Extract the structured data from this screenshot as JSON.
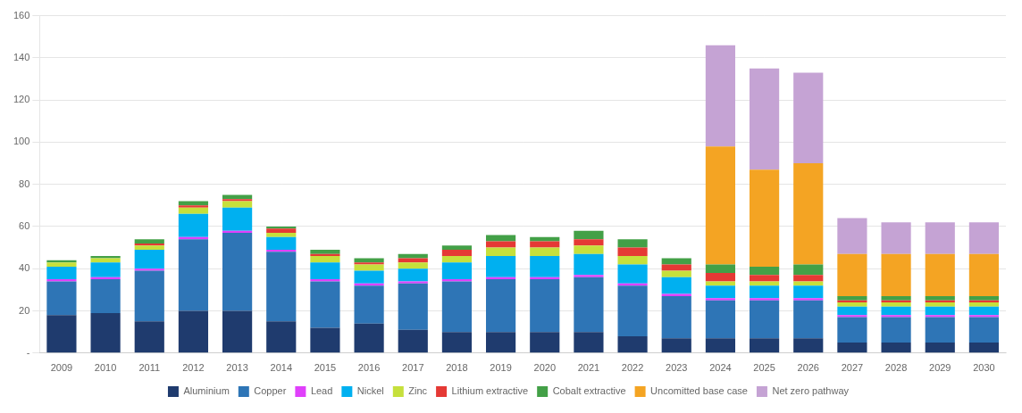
{
  "chart_data": {
    "type": "bar",
    "categories": [
      "2009",
      "2010",
      "2011",
      "2012",
      "2013",
      "2014",
      "2015",
      "2016",
      "2017",
      "2018",
      "2019",
      "2020",
      "2021",
      "2022",
      "2023",
      "2024",
      "2025",
      "2026",
      "2027",
      "2028",
      "2029",
      "2030"
    ],
    "series": [
      {
        "name": "Aluminium",
        "color": "#1f3b6e",
        "values": [
          18,
          19,
          15,
          20,
          20,
          15,
          12,
          14,
          11,
          10,
          10,
          10,
          10,
          8,
          7,
          7,
          7,
          7,
          5,
          5,
          5,
          5
        ]
      },
      {
        "name": "Copper",
        "color": "#2e75b6",
        "values": [
          16,
          16,
          24,
          34,
          37,
          33,
          22,
          18,
          22,
          24,
          25,
          25,
          26,
          24,
          20,
          18,
          18,
          18,
          12,
          12,
          12,
          12
        ]
      },
      {
        "name": "Lead",
        "color": "#e040fb",
        "values": [
          1,
          1,
          1,
          1,
          1,
          1,
          1,
          1,
          1,
          1,
          1,
          1,
          1,
          1,
          1,
          1,
          1,
          1,
          1,
          1,
          1,
          1
        ]
      },
      {
        "name": "Nickel",
        "color": "#00b0f0",
        "values": [
          6,
          7,
          9,
          11,
          11,
          6,
          8,
          6,
          6,
          8,
          10,
          10,
          10,
          9,
          8,
          6,
          6,
          6,
          4,
          4,
          4,
          4
        ]
      },
      {
        "name": "Zinc",
        "color": "#c6e03c",
        "values": [
          2,
          2,
          2,
          3,
          3,
          2,
          3,
          3,
          3,
          3,
          4,
          4,
          4,
          4,
          3,
          2,
          2,
          2,
          2,
          2,
          2,
          2
        ]
      },
      {
        "name": "Lithium extractive",
        "color": "#e53935",
        "values": [
          0,
          0,
          1,
          1,
          1,
          2,
          1,
          1,
          2,
          3,
          3,
          3,
          3,
          4,
          3,
          4,
          3,
          3,
          1,
          1,
          1,
          1
        ]
      },
      {
        "name": "Cobalt extractive",
        "color": "#43a047",
        "values": [
          1,
          1,
          2,
          2,
          2,
          1,
          2,
          2,
          2,
          2,
          3,
          2,
          4,
          4,
          3,
          4,
          4,
          5,
          2,
          2,
          2,
          2
        ]
      },
      {
        "name": "Uncomitted base case",
        "color": "#f4a423",
        "values": [
          0,
          0,
          0,
          0,
          0,
          0,
          0,
          0,
          0,
          0,
          0,
          0,
          0,
          0,
          0,
          56,
          46,
          48,
          20,
          20,
          20,
          20
        ]
      },
      {
        "name": "Net zero pathway",
        "color": "#c5a3d4",
        "values": [
          0,
          0,
          0,
          0,
          0,
          0,
          0,
          0,
          0,
          0,
          0,
          0,
          0,
          0,
          0,
          48,
          48,
          43,
          17,
          15,
          15,
          15
        ]
      }
    ],
    "ylim": [
      0,
      160
    ],
    "yticks": [
      {
        "value": 0,
        "label": "-"
      },
      20,
      40,
      60,
      80,
      100,
      120,
      140,
      160
    ],
    "stacked": true,
    "grid": true,
    "legend": "bottom"
  }
}
